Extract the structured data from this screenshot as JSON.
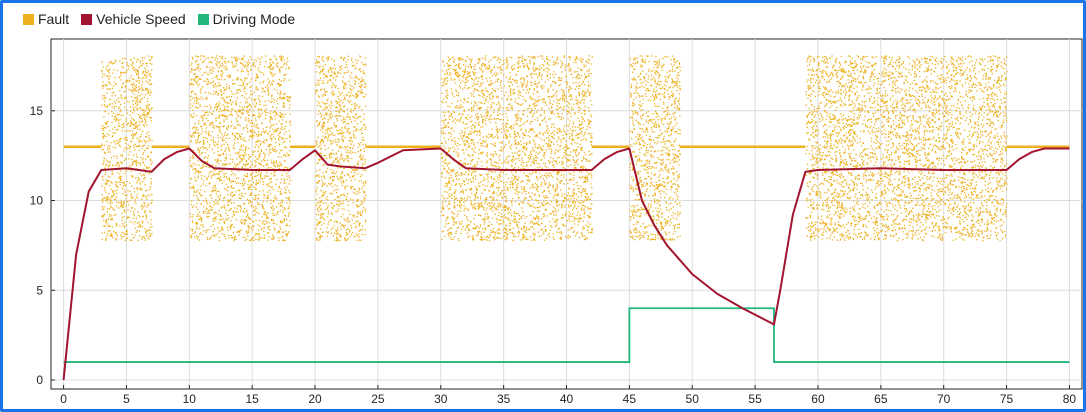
{
  "chart_data": {
    "type": "line",
    "xlim": [
      -1,
      81
    ],
    "ylim": [
      -0.5,
      19
    ],
    "x_ticks": [
      0,
      5,
      10,
      15,
      20,
      25,
      30,
      35,
      40,
      45,
      50,
      55,
      60,
      65,
      70,
      75,
      80
    ],
    "y_ticks": [
      0,
      5,
      10,
      15
    ],
    "grid": true,
    "legend_position": "top-left",
    "series": [
      {
        "name": "Fault",
        "color": "#EDB120",
        "baseline": 13,
        "active_windows": [
          [
            3,
            7
          ],
          [
            10,
            18
          ],
          [
            20,
            24
          ],
          [
            30,
            42
          ],
          [
            45,
            49
          ],
          [
            59,
            75
          ]
        ],
        "active_range": [
          7.8,
          18.1
        ]
      },
      {
        "name": "Vehicle Speed",
        "color": "#A2142F",
        "x": [
          0,
          1,
          2,
          3,
          5,
          6,
          7,
          8,
          9,
          10,
          11,
          12,
          15,
          18,
          19,
          20,
          21,
          22,
          24,
          25,
          27,
          30,
          31,
          32,
          35,
          38,
          42,
          43,
          44,
          45,
          46,
          47,
          48,
          50,
          52,
          54,
          56.5,
          57,
          58,
          59,
          60,
          65,
          70,
          75,
          76,
          77,
          78,
          80
        ],
        "y": [
          0,
          7,
          10.5,
          11.7,
          11.8,
          11.7,
          11.6,
          12.3,
          12.7,
          12.9,
          12.2,
          11.8,
          11.7,
          11.7,
          12.3,
          12.8,
          12.0,
          11.9,
          11.8,
          12.1,
          12.8,
          12.9,
          12.3,
          11.8,
          11.7,
          11.7,
          11.7,
          12.3,
          12.7,
          12.9,
          10.0,
          8.6,
          7.5,
          5.9,
          4.8,
          4.0,
          3.1,
          5.0,
          9.2,
          11.6,
          11.7,
          11.8,
          11.7,
          11.7,
          12.3,
          12.7,
          12.9,
          12.9
        ]
      },
      {
        "name": "Driving Mode",
        "color": "#20B77A",
        "x": [
          0,
          45,
          45,
          56.5,
          56.5,
          80
        ],
        "y": [
          1,
          1,
          4,
          4,
          1,
          1
        ]
      }
    ]
  }
}
